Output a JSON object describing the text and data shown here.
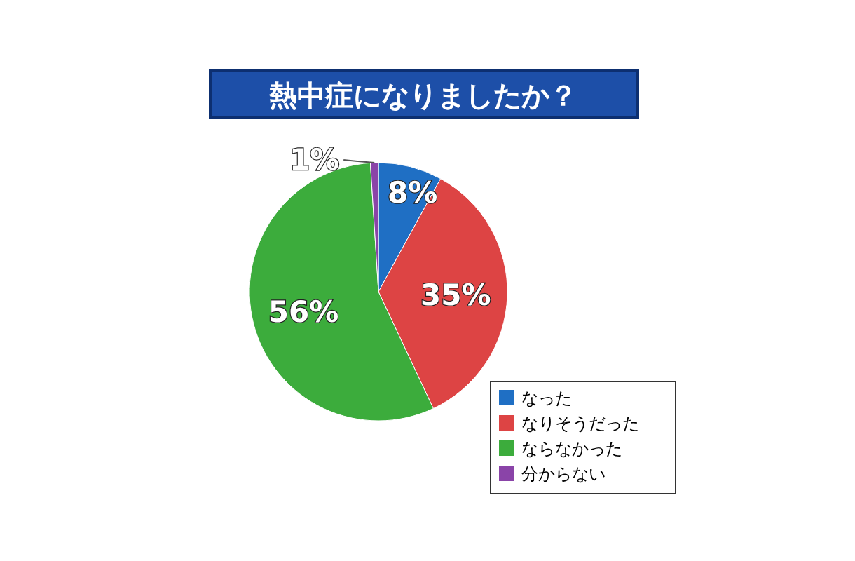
{
  "chart_data": {
    "type": "pie",
    "title": "熱中症になりましたか？",
    "categories": [
      "なった",
      "なりそうだった",
      "ならなかった",
      "分からない"
    ],
    "values": [
      8,
      35,
      56,
      1
    ],
    "value_labels": [
      "8%",
      "35%",
      "56%",
      "1%"
    ],
    "colors": [
      "#1f6fc4",
      "#dd4444",
      "#3cac3c",
      "#8a44a8"
    ],
    "legend": "bottom right"
  }
}
